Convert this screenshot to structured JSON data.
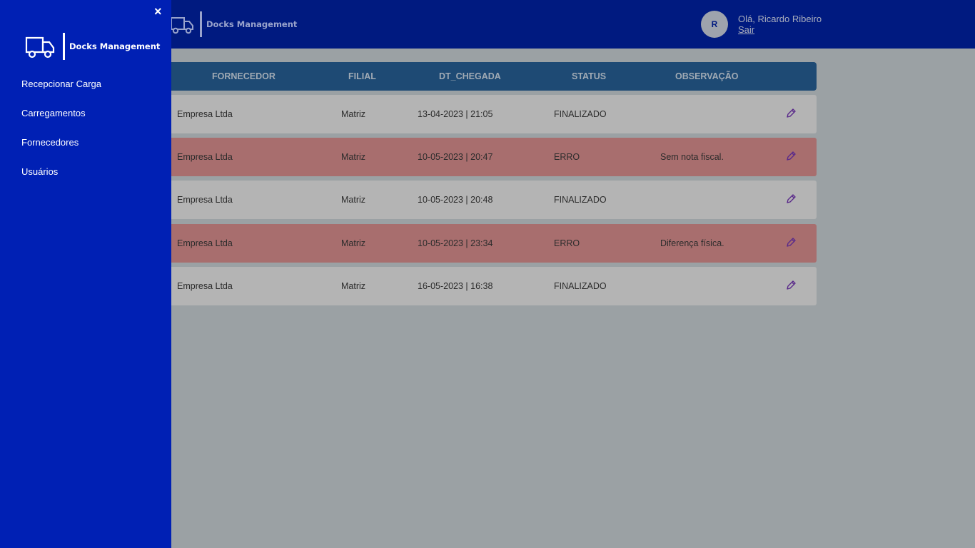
{
  "app": {
    "brand": "Docks Management"
  },
  "header": {
    "avatar_initial": "R",
    "greeting": "Olá, Ricardo Ribeiro",
    "logout": "Sair"
  },
  "sidebar": {
    "close_label": "×",
    "items": [
      {
        "label": "Recepcionar Carga"
      },
      {
        "label": "Carregamentos"
      },
      {
        "label": "Fornecedores"
      },
      {
        "label": "Usuários"
      }
    ]
  },
  "table": {
    "columns": [
      "FORNECEDOR",
      "FILIAL",
      "DT_CHEGADA",
      "STATUS",
      "OBSERVAÇÃO"
    ],
    "rows": [
      {
        "fornecedor": "Empresa Ltda",
        "filial": "Matriz",
        "dt_chegada": "13-04-2023 | 21:05",
        "status": "FINALIZADO",
        "observacao": ""
      },
      {
        "fornecedor": "Empresa Ltda",
        "filial": "Matriz",
        "dt_chegada": "10-05-2023 | 20:47",
        "status": "ERRO",
        "observacao": "Sem nota fiscal."
      },
      {
        "fornecedor": "Empresa Ltda",
        "filial": "Matriz",
        "dt_chegada": "10-05-2023 | 20:48",
        "status": "FINALIZADO",
        "observacao": ""
      },
      {
        "fornecedor": "Empresa Ltda",
        "filial": "Matriz",
        "dt_chegada": "10-05-2023 | 23:34",
        "status": "ERRO",
        "observacao": "Diferença física."
      },
      {
        "fornecedor": "Empresa Ltda",
        "filial": "Matriz",
        "dt_chegada": "16-05-2023 | 16:38",
        "status": "FINALIZADO",
        "observacao": ""
      }
    ]
  },
  "icons": {
    "truck": "truck-icon",
    "edit": "pencil-icon",
    "close": "close-icon"
  },
  "colors": {
    "header": "#001a80",
    "sidebar": "#0020b4",
    "table_header": "#1e4a74",
    "row_ok": "#b4b4b4",
    "row_error": "#a86e6e",
    "edit_icon": "#5a2a8a"
  }
}
